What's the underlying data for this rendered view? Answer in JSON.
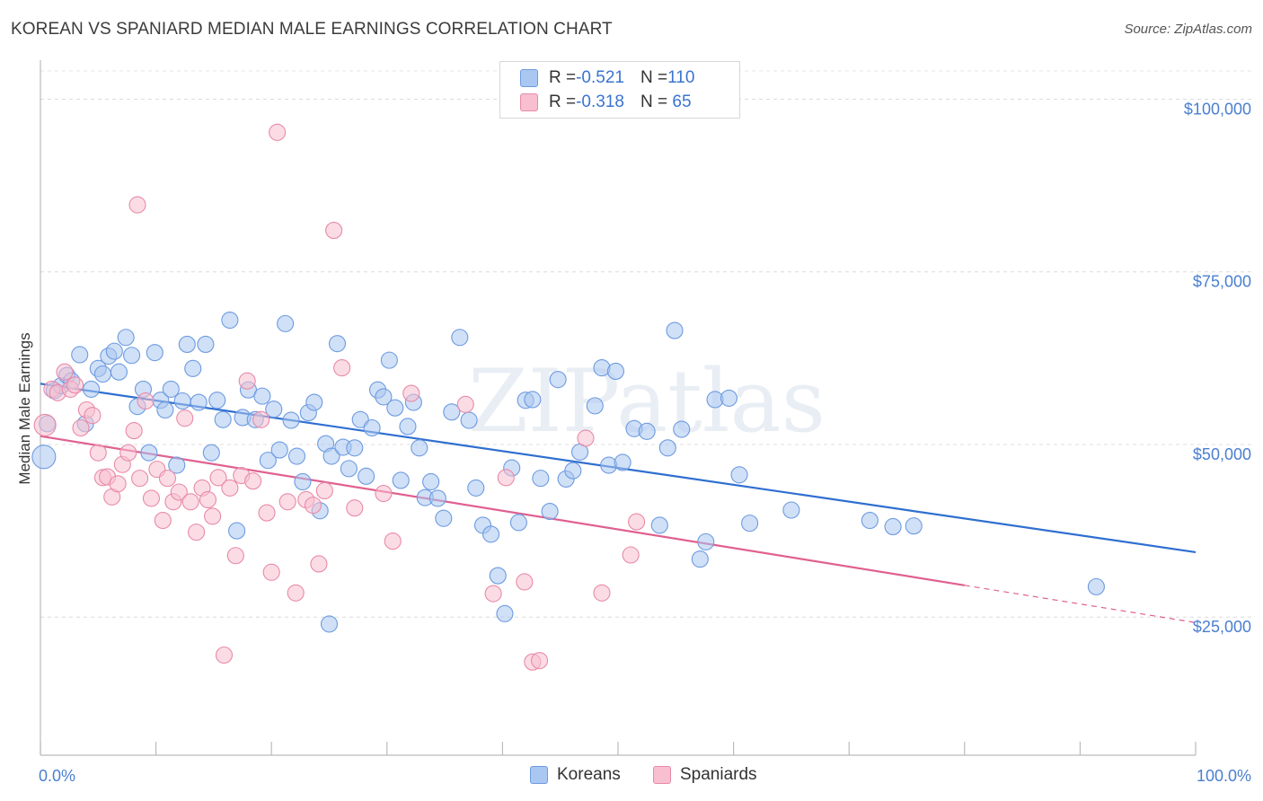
{
  "header": {
    "title": "KOREAN VS SPANIARD MEDIAN MALE EARNINGS CORRELATION CHART",
    "source": "Source: ZipAtlas.com"
  },
  "legend": {
    "rows": [
      {
        "r_label": "R = ",
        "r_value": "-0.521",
        "n_label": "N = ",
        "n_value": "110",
        "color": "#a9c7f0",
        "border": "#6d9be0"
      },
      {
        "r_label": "R = ",
        "r_value": "-0.318",
        "n_label": "N = ",
        "n_value": " 65",
        "color": "#f7bfd0",
        "border": "#e88aa8"
      }
    ]
  },
  "bottom_legend": {
    "koreans": "Koreans",
    "spaniards": "Spaniards"
  },
  "watermark": "ZIPatlas",
  "chart_data": {
    "type": "scatter",
    "ylabel": "Median Male Earnings",
    "xlabel": "",
    "xlim": [
      0,
      100
    ],
    "ylim": [
      5000,
      105000
    ],
    "x_tick_labels": {
      "left": "0.0%",
      "right": "100.0%"
    },
    "y_ticks": [
      {
        "value": 100000,
        "label": "$100,000"
      },
      {
        "value": 75000,
        "label": "$75,000"
      },
      {
        "value": 50000,
        "label": "$50,000"
      },
      {
        "value": 25000,
        "label": "$25,000"
      }
    ],
    "grid": true,
    "series": [
      {
        "name": "Koreans",
        "color": "#a9c7f0",
        "stroke": "#6d9be0",
        "trend": {
          "x": [
            0,
            100
          ],
          "y": [
            58800,
            34400
          ],
          "color": "#2f6fd0"
        },
        "points": [
          [
            0.3,
            48200
          ],
          [
            0.6,
            53000
          ],
          [
            1.2,
            57800
          ],
          [
            1.8,
            58500
          ],
          [
            2.3,
            60000
          ],
          [
            2.7,
            59200
          ],
          [
            3.4,
            63000
          ],
          [
            3.9,
            53000
          ],
          [
            4.4,
            58000
          ],
          [
            5.0,
            61000
          ],
          [
            5.4,
            60200
          ],
          [
            5.9,
            62800
          ],
          [
            6.4,
            63500
          ],
          [
            6.8,
            60500
          ],
          [
            7.4,
            65500
          ],
          [
            7.9,
            62900
          ],
          [
            8.4,
            55500
          ],
          [
            8.9,
            58000
          ],
          [
            9.4,
            48800
          ],
          [
            9.9,
            63300
          ],
          [
            10.4,
            56400
          ],
          [
            10.8,
            55000
          ],
          [
            11.3,
            58000
          ],
          [
            11.8,
            47000
          ],
          [
            12.3,
            56300
          ],
          [
            12.7,
            64500
          ],
          [
            13.2,
            61000
          ],
          [
            13.7,
            56100
          ],
          [
            14.3,
            64500
          ],
          [
            14.8,
            48800
          ],
          [
            15.3,
            56400
          ],
          [
            15.8,
            53600
          ],
          [
            16.4,
            68000
          ],
          [
            17.0,
            37500
          ],
          [
            17.5,
            53900
          ],
          [
            18.0,
            57900
          ],
          [
            18.6,
            53600
          ],
          [
            19.2,
            57000
          ],
          [
            19.7,
            47700
          ],
          [
            20.2,
            55100
          ],
          [
            20.7,
            49200
          ],
          [
            21.2,
            67500
          ],
          [
            21.7,
            53500
          ],
          [
            22.2,
            48300
          ],
          [
            22.7,
            44600
          ],
          [
            23.2,
            54600
          ],
          [
            23.7,
            56100
          ],
          [
            24.2,
            40400
          ],
          [
            24.7,
            50100
          ],
          [
            25.2,
            48300
          ],
          [
            25.7,
            64600
          ],
          [
            26.2,
            49600
          ],
          [
            26.7,
            46500
          ],
          [
            27.2,
            49500
          ],
          [
            27.7,
            53600
          ],
          [
            28.2,
            45400
          ],
          [
            28.7,
            52400
          ],
          [
            29.2,
            57900
          ],
          [
            29.7,
            56900
          ],
          [
            30.2,
            62200
          ],
          [
            30.7,
            55300
          ],
          [
            31.2,
            44800
          ],
          [
            31.8,
            52600
          ],
          [
            32.3,
            56100
          ],
          [
            32.8,
            49500
          ],
          [
            33.3,
            42300
          ],
          [
            33.8,
            44600
          ],
          [
            34.4,
            42200
          ],
          [
            34.9,
            39300
          ],
          [
            35.6,
            54700
          ],
          [
            36.3,
            65500
          ],
          [
            37.1,
            53500
          ],
          [
            37.7,
            43700
          ],
          [
            38.3,
            38300
          ],
          [
            39.0,
            37000
          ],
          [
            39.6,
            31000
          ],
          [
            40.2,
            25500
          ],
          [
            40.8,
            46600
          ],
          [
            41.4,
            38700
          ],
          [
            42.0,
            56400
          ],
          [
            42.6,
            56500
          ],
          [
            43.3,
            45100
          ],
          [
            44.1,
            40300
          ],
          [
            44.8,
            59400
          ],
          [
            45.5,
            45000
          ],
          [
            46.1,
            46200
          ],
          [
            46.7,
            48900
          ],
          [
            48.0,
            55600
          ],
          [
            48.6,
            61100
          ],
          [
            49.2,
            47000
          ],
          [
            49.8,
            60600
          ],
          [
            50.4,
            47400
          ],
          [
            51.4,
            52300
          ],
          [
            52.5,
            51900
          ],
          [
            53.6,
            38300
          ],
          [
            54.3,
            49500
          ],
          [
            54.9,
            66500
          ],
          [
            55.5,
            52200
          ],
          [
            57.1,
            33400
          ],
          [
            57.6,
            35900
          ],
          [
            58.4,
            56500
          ],
          [
            59.6,
            56700
          ],
          [
            60.5,
            45600
          ],
          [
            61.4,
            38600
          ],
          [
            65.0,
            40500
          ],
          [
            71.8,
            39000
          ],
          [
            73.8,
            38100
          ],
          [
            75.6,
            38200
          ],
          [
            91.4,
            29400
          ],
          [
            25.0,
            24000
          ]
        ]
      },
      {
        "name": "Spaniards",
        "color": "#f7bfd0",
        "stroke": "#e88aa8",
        "trend": {
          "x": [
            0,
            80
          ],
          "y": [
            51200,
            29600
          ],
          "color": "#e06090",
          "dash_x": [
            80,
            100
          ],
          "dash_y": [
            29600,
            24200
          ]
        },
        "points": [
          [
            0.4,
            52800
          ],
          [
            1.0,
            58000
          ],
          [
            1.5,
            57500
          ],
          [
            2.1,
            60500
          ],
          [
            2.6,
            58000
          ],
          [
            3.0,
            58600
          ],
          [
            3.5,
            52400
          ],
          [
            4.0,
            55000
          ],
          [
            4.5,
            54200
          ],
          [
            5.0,
            48800
          ],
          [
            5.4,
            45200
          ],
          [
            5.8,
            45300
          ],
          [
            6.2,
            42400
          ],
          [
            6.7,
            44300
          ],
          [
            7.1,
            47100
          ],
          [
            7.6,
            48800
          ],
          [
            8.1,
            52000
          ],
          [
            8.6,
            45100
          ],
          [
            9.1,
            56300
          ],
          [
            9.6,
            42200
          ],
          [
            10.1,
            46400
          ],
          [
            10.6,
            39000
          ],
          [
            11.0,
            45100
          ],
          [
            11.5,
            41700
          ],
          [
            12.0,
            43100
          ],
          [
            12.5,
            53800
          ],
          [
            13.0,
            41700
          ],
          [
            13.5,
            37300
          ],
          [
            14.0,
            43700
          ],
          [
            14.5,
            42000
          ],
          [
            14.9,
            39600
          ],
          [
            15.4,
            45200
          ],
          [
            15.9,
            19500
          ],
          [
            16.4,
            43700
          ],
          [
            16.9,
            33900
          ],
          [
            17.4,
            45500
          ],
          [
            17.9,
            59200
          ],
          [
            18.4,
            44700
          ],
          [
            19.1,
            53600
          ],
          [
            19.6,
            40100
          ],
          [
            20.0,
            31500
          ],
          [
            20.5,
            95200
          ],
          [
            21.4,
            41700
          ],
          [
            22.1,
            28500
          ],
          [
            23.0,
            42000
          ],
          [
            23.6,
            41200
          ],
          [
            24.1,
            32700
          ],
          [
            24.6,
            43300
          ],
          [
            25.4,
            81000
          ],
          [
            26.1,
            61100
          ],
          [
            27.2,
            40800
          ],
          [
            29.7,
            42900
          ],
          [
            30.5,
            36000
          ],
          [
            32.1,
            57400
          ],
          [
            36.8,
            55800
          ],
          [
            39.2,
            28400
          ],
          [
            40.3,
            45200
          ],
          [
            41.9,
            30100
          ],
          [
            42.6,
            18500
          ],
          [
            43.2,
            18700
          ],
          [
            47.2,
            50900
          ],
          [
            48.6,
            28500
          ],
          [
            51.1,
            34000
          ],
          [
            51.6,
            38800
          ],
          [
            8.4,
            84700
          ]
        ]
      }
    ]
  }
}
